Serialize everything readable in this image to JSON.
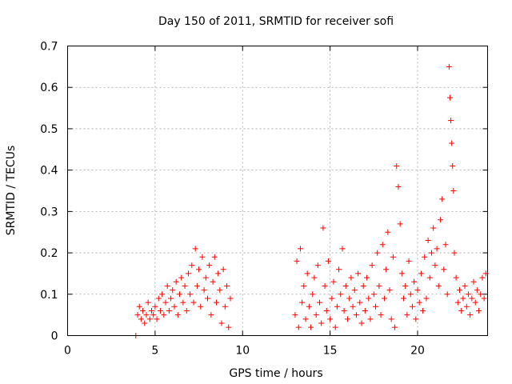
{
  "chart_data": {
    "type": "scatter",
    "title": "Day 150 of 2011, SRMTID for receiver sofi",
    "xlabel": "GPS time / hours",
    "ylabel": "SRMTID / TECUs",
    "xlim": [
      0,
      24
    ],
    "ylim": [
      0,
      0.7
    ],
    "xticks": [
      0,
      5,
      10,
      15,
      20
    ],
    "yticks": [
      0,
      0.1,
      0.2,
      0.3,
      0.4,
      0.5,
      0.6,
      0.7
    ],
    "xtick_labels": [
      "0",
      "5",
      "10",
      "15",
      "20"
    ],
    "ytick_labels": [
      "0",
      "0.1",
      "0.2",
      "0.3",
      "0.4",
      "0.5",
      "0.6",
      "0.7"
    ],
    "grid": true,
    "marker": "+",
    "color": "#ff0000",
    "series": [
      {
        "name": "SRMTID",
        "points": [
          [
            3.9,
            0.0
          ],
          [
            4.0,
            0.05
          ],
          [
            4.1,
            0.07
          ],
          [
            4.2,
            0.04
          ],
          [
            4.3,
            0.06
          ],
          [
            4.4,
            0.03
          ],
          [
            4.5,
            0.05
          ],
          [
            4.6,
            0.08
          ],
          [
            4.7,
            0.04
          ],
          [
            4.8,
            0.06
          ],
          [
            4.9,
            0.05
          ],
          [
            5.0,
            0.07
          ],
          [
            5.1,
            0.04
          ],
          [
            5.2,
            0.09
          ],
          [
            5.3,
            0.06
          ],
          [
            5.4,
            0.1
          ],
          [
            5.5,
            0.05
          ],
          [
            5.6,
            0.08
          ],
          [
            5.7,
            0.12
          ],
          [
            5.8,
            0.06
          ],
          [
            5.9,
            0.09
          ],
          [
            6.0,
            0.11
          ],
          [
            6.1,
            0.07
          ],
          [
            6.2,
            0.13
          ],
          [
            6.3,
            0.05
          ],
          [
            6.4,
            0.1
          ],
          [
            6.5,
            0.14
          ],
          [
            6.6,
            0.08
          ],
          [
            6.7,
            0.12
          ],
          [
            6.8,
            0.06
          ],
          [
            6.9,
            0.15
          ],
          [
            7.0,
            0.1
          ],
          [
            7.1,
            0.17
          ],
          [
            7.2,
            0.08
          ],
          [
            7.3,
            0.21
          ],
          [
            7.4,
            0.12
          ],
          [
            7.5,
            0.16
          ],
          [
            7.6,
            0.07
          ],
          [
            7.7,
            0.19
          ],
          [
            7.8,
            0.11
          ],
          [
            7.9,
            0.14
          ],
          [
            8.0,
            0.09
          ],
          [
            8.1,
            0.17
          ],
          [
            8.2,
            0.05
          ],
          [
            8.3,
            0.13
          ],
          [
            8.4,
            0.19
          ],
          [
            8.5,
            0.08
          ],
          [
            8.6,
            0.15
          ],
          [
            8.7,
            0.11
          ],
          [
            8.8,
            0.03
          ],
          [
            8.9,
            0.16
          ],
          [
            9.0,
            0.07
          ],
          [
            9.1,
            0.12
          ],
          [
            9.2,
            0.02
          ],
          [
            9.3,
            0.09
          ],
          [
            13.0,
            0.05
          ],
          [
            13.1,
            0.18
          ],
          [
            13.2,
            0.02
          ],
          [
            13.3,
            0.21
          ],
          [
            13.4,
            0.08
          ],
          [
            13.5,
            0.12
          ],
          [
            13.6,
            0.04
          ],
          [
            13.7,
            0.15
          ],
          [
            13.8,
            0.07
          ],
          [
            13.9,
            0.02
          ],
          [
            14.0,
            0.1
          ],
          [
            14.1,
            0.14
          ],
          [
            14.2,
            0.05
          ],
          [
            14.3,
            0.17
          ],
          [
            14.4,
            0.08
          ],
          [
            14.5,
            0.03
          ],
          [
            14.6,
            0.26
          ],
          [
            14.7,
            0.12
          ],
          [
            14.8,
            0.06
          ],
          [
            14.9,
            0.18
          ],
          [
            15.0,
            0.04
          ],
          [
            15.1,
            0.09
          ],
          [
            15.2,
            0.13
          ],
          [
            15.3,
            0.02
          ],
          [
            15.4,
            0.07
          ],
          [
            15.5,
            0.16
          ],
          [
            15.6,
            0.1
          ],
          [
            15.7,
            0.21
          ],
          [
            15.8,
            0.06
          ],
          [
            15.9,
            0.12
          ],
          [
            16.0,
            0.04
          ],
          [
            16.1,
            0.09
          ],
          [
            16.2,
            0.14
          ],
          [
            16.3,
            0.07
          ],
          [
            16.4,
            0.11
          ],
          [
            16.5,
            0.05
          ],
          [
            16.6,
            0.15
          ],
          [
            16.7,
            0.08
          ],
          [
            16.8,
            0.03
          ],
          [
            16.9,
            0.12
          ],
          [
            17.0,
            0.06
          ],
          [
            17.1,
            0.14
          ],
          [
            17.2,
            0.09
          ],
          [
            17.3,
            0.04
          ],
          [
            17.4,
            0.17
          ],
          [
            17.5,
            0.1
          ],
          [
            17.6,
            0.07
          ],
          [
            17.7,
            0.2
          ],
          [
            17.8,
            0.12
          ],
          [
            17.9,
            0.05
          ],
          [
            18.0,
            0.22
          ],
          [
            18.1,
            0.09
          ],
          [
            18.2,
            0.16
          ],
          [
            18.3,
            0.25
          ],
          [
            18.4,
            0.11
          ],
          [
            18.5,
            0.04
          ],
          [
            18.6,
            0.19
          ],
          [
            18.7,
            0.02
          ],
          [
            18.8,
            0.41
          ],
          [
            18.9,
            0.36
          ],
          [
            19.0,
            0.27
          ],
          [
            19.1,
            0.15
          ],
          [
            19.2,
            0.09
          ],
          [
            19.3,
            0.12
          ],
          [
            19.4,
            0.05
          ],
          [
            19.5,
            0.18
          ],
          [
            19.6,
            0.1
          ],
          [
            19.7,
            0.07
          ],
          [
            19.8,
            0.13
          ],
          [
            19.9,
            0.04
          ],
          [
            20.0,
            0.11
          ],
          [
            20.1,
            0.08
          ],
          [
            20.2,
            0.15
          ],
          [
            20.3,
            0.06
          ],
          [
            20.4,
            0.19
          ],
          [
            20.5,
            0.09
          ],
          [
            20.6,
            0.23
          ],
          [
            20.7,
            0.14
          ],
          [
            20.8,
            0.2
          ],
          [
            20.9,
            0.26
          ],
          [
            21.0,
            0.17
          ],
          [
            21.1,
            0.21
          ],
          [
            21.2,
            0.12
          ],
          [
            21.3,
            0.28
          ],
          [
            21.4,
            0.33
          ],
          [
            21.5,
            0.16
          ],
          [
            21.6,
            0.22
          ],
          [
            21.7,
            0.1
          ],
          [
            21.8,
            0.65
          ],
          [
            21.85,
            0.575
          ],
          [
            21.9,
            0.52
          ],
          [
            21.95,
            0.465
          ],
          [
            22.0,
            0.41
          ],
          [
            22.05,
            0.35
          ],
          [
            22.1,
            0.2
          ],
          [
            22.2,
            0.14
          ],
          [
            22.3,
            0.08
          ],
          [
            22.4,
            0.11
          ],
          [
            22.5,
            0.06
          ],
          [
            22.6,
            0.09
          ],
          [
            22.7,
            0.12
          ],
          [
            22.8,
            0.07
          ],
          [
            22.9,
            0.1
          ],
          [
            23.0,
            0.05
          ],
          [
            23.1,
            0.09
          ],
          [
            23.2,
            0.13
          ],
          [
            23.3,
            0.08
          ],
          [
            23.4,
            0.11
          ],
          [
            23.5,
            0.06
          ],
          [
            23.6,
            0.1
          ],
          [
            23.7,
            0.14
          ],
          [
            23.8,
            0.09
          ],
          [
            23.9,
            0.15
          ]
        ]
      }
    ]
  }
}
